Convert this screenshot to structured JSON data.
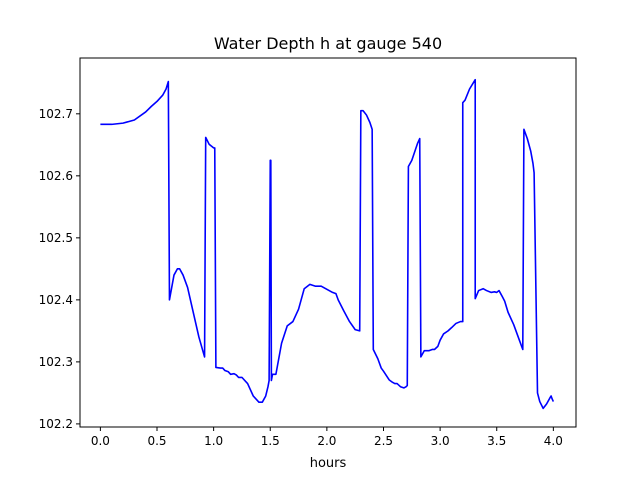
{
  "chart_data": {
    "type": "line",
    "title": "Water Depth h at gauge 540",
    "xlabel": "hours",
    "ylabel": "",
    "xlim": [
      -0.18,
      4.2
    ],
    "ylim": [
      102.195,
      102.79
    ],
    "grid": false,
    "x_ticks": [
      0.0,
      0.5,
      1.0,
      1.5,
      2.0,
      2.5,
      3.0,
      3.5,
      4.0
    ],
    "x_tick_labels": [
      "0.0",
      "0.5",
      "1.0",
      "1.5",
      "2.0",
      "2.5",
      "3.0",
      "3.5",
      "4.0"
    ],
    "y_ticks": [
      102.2,
      102.3,
      102.4,
      102.5,
      102.6,
      102.7
    ],
    "y_tick_labels": [
      "102.2",
      "102.3",
      "102.4",
      "102.5",
      "102.6",
      "102.7"
    ],
    "series": [
      {
        "color": "#0000ff",
        "x": [
          0.0,
          0.1,
          0.2,
          0.3,
          0.4,
          0.45,
          0.5,
          0.55,
          0.58,
          0.6,
          0.61,
          0.62,
          0.65,
          0.68,
          0.7,
          0.73,
          0.77,
          0.82,
          0.87,
          0.92,
          0.93,
          0.96,
          1.0,
          1.01,
          1.02,
          1.06,
          1.08,
          1.1,
          1.13,
          1.15,
          1.18,
          1.2,
          1.22,
          1.25,
          1.3,
          1.35,
          1.4,
          1.43,
          1.46,
          1.48,
          1.49,
          1.5,
          1.5,
          1.505,
          1.51,
          1.51,
          1.52,
          1.54,
          1.55,
          1.6,
          1.65,
          1.7,
          1.75,
          1.8,
          1.85,
          1.9,
          1.95,
          2.0,
          2.05,
          2.08,
          2.1,
          2.15,
          2.2,
          2.25,
          2.29,
          2.3,
          2.32,
          2.35,
          2.38,
          2.4,
          2.41,
          2.45,
          2.48,
          2.5,
          2.55,
          2.58,
          2.6,
          2.62,
          2.65,
          2.68,
          2.7,
          2.71,
          2.72,
          2.75,
          2.8,
          2.82,
          2.83,
          2.86,
          2.9,
          2.93,
          2.95,
          2.98,
          3.0,
          3.03,
          3.07,
          3.1,
          3.14,
          3.18,
          3.2,
          3.2,
          3.22,
          3.26,
          3.3,
          3.31,
          3.31,
          3.34,
          3.38,
          3.41,
          3.45,
          3.48,
          3.5,
          3.52,
          3.55,
          3.57,
          3.6,
          3.65,
          3.7,
          3.72,
          3.73,
          3.74,
          3.77,
          3.8,
          3.82,
          3.83,
          3.86,
          3.88,
          3.91,
          3.94,
          3.97,
          3.98,
          3.99,
          4.0
        ],
        "y": [
          102.683,
          102.683,
          102.685,
          102.69,
          102.703,
          102.712,
          102.72,
          102.73,
          102.74,
          102.752,
          102.4,
          102.41,
          102.44,
          102.45,
          102.45,
          102.44,
          102.42,
          102.38,
          102.34,
          102.308,
          102.662,
          102.651,
          102.645,
          102.645,
          102.291,
          102.29,
          102.29,
          102.286,
          102.284,
          102.28,
          102.281,
          102.279,
          102.275,
          102.275,
          102.265,
          102.245,
          102.235,
          102.235,
          102.245,
          102.26,
          102.27,
          102.622,
          102.625,
          102.625,
          102.275,
          102.27,
          102.28,
          102.28,
          102.28,
          102.33,
          102.358,
          102.365,
          102.385,
          102.418,
          102.425,
          102.422,
          102.422,
          102.417,
          102.412,
          102.41,
          102.4,
          102.382,
          102.365,
          102.352,
          102.35,
          102.705,
          102.705,
          102.698,
          102.686,
          102.675,
          102.32,
          102.305,
          102.29,
          102.285,
          102.271,
          102.267,
          102.265,
          102.265,
          102.26,
          102.258,
          102.26,
          102.262,
          102.615,
          102.625,
          102.652,
          102.66,
          102.308,
          102.318,
          102.318,
          102.32,
          102.32,
          102.325,
          102.335,
          102.345,
          102.35,
          102.355,
          102.362,
          102.365,
          102.365,
          102.718,
          102.722,
          102.74,
          102.752,
          102.755,
          102.402,
          102.415,
          102.418,
          102.415,
          102.412,
          102.413,
          102.412,
          102.415,
          102.405,
          102.398,
          102.38,
          102.36,
          102.335,
          102.325,
          102.32,
          102.675,
          102.66,
          102.64,
          102.62,
          102.605,
          102.25,
          102.236,
          102.225,
          102.232,
          102.242,
          102.245,
          102.24,
          102.236
        ]
      }
    ]
  }
}
